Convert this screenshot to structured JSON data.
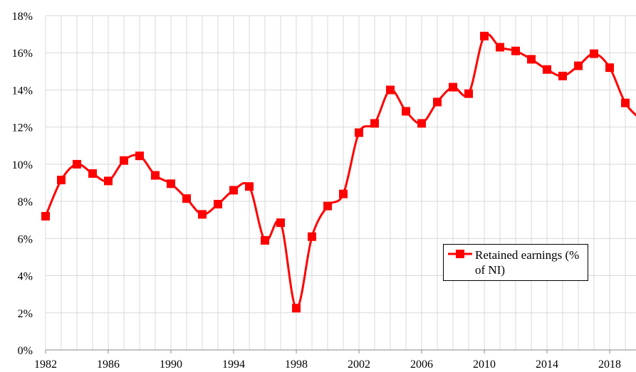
{
  "chart_data": {
    "type": "line",
    "x": [
      1982,
      1983,
      1984,
      1985,
      1986,
      1987,
      1988,
      1989,
      1990,
      1991,
      1992,
      1993,
      1994,
      1995,
      1996,
      1997,
      1998,
      1999,
      2000,
      2001,
      2002,
      2003,
      2004,
      2005,
      2006,
      2007,
      2008,
      2009,
      2010,
      2011,
      2012,
      2013,
      2014,
      2015,
      2016,
      2017,
      2018,
      2019,
      2020
    ],
    "series": [
      {
        "name": "Retained earnings (% of NI)",
        "color": "#ff0000",
        "values": [
          7.2,
          9.15,
          10.0,
          9.5,
          9.1,
          10.2,
          10.45,
          9.4,
          8.95,
          8.15,
          7.3,
          7.85,
          8.6,
          8.8,
          5.9,
          6.85,
          2.25,
          6.1,
          7.75,
          8.4,
          11.7,
          12.2,
          14.0,
          12.85,
          12.2,
          13.35,
          14.15,
          13.8,
          16.9,
          16.3,
          16.1,
          15.65,
          15.1,
          14.75,
          15.3,
          15.95,
          15.2,
          13.3,
          12.4
        ]
      }
    ],
    "xlim": [
      1982,
      2019.68
    ],
    "xticks": [
      1982,
      1986,
      1990,
      1994,
      1998,
      2002,
      2006,
      2010,
      2014,
      2018
    ],
    "ylim": [
      0,
      18
    ],
    "yticks": [
      {
        "value": 0,
        "label": "0%"
      },
      {
        "value": 2,
        "label": "2%"
      },
      {
        "value": 4,
        "label": "4%"
      },
      {
        "value": 6,
        "label": "6%"
      },
      {
        "value": 8,
        "label": "8%"
      },
      {
        "value": 10,
        "label": "10%"
      },
      {
        "value": 12,
        "label": "12%"
      },
      {
        "value": 14,
        "label": "14%"
      },
      {
        "value": 16,
        "label": "16%"
      },
      {
        "value": 18,
        "label": "18%"
      }
    ],
    "grid": true
  }
}
